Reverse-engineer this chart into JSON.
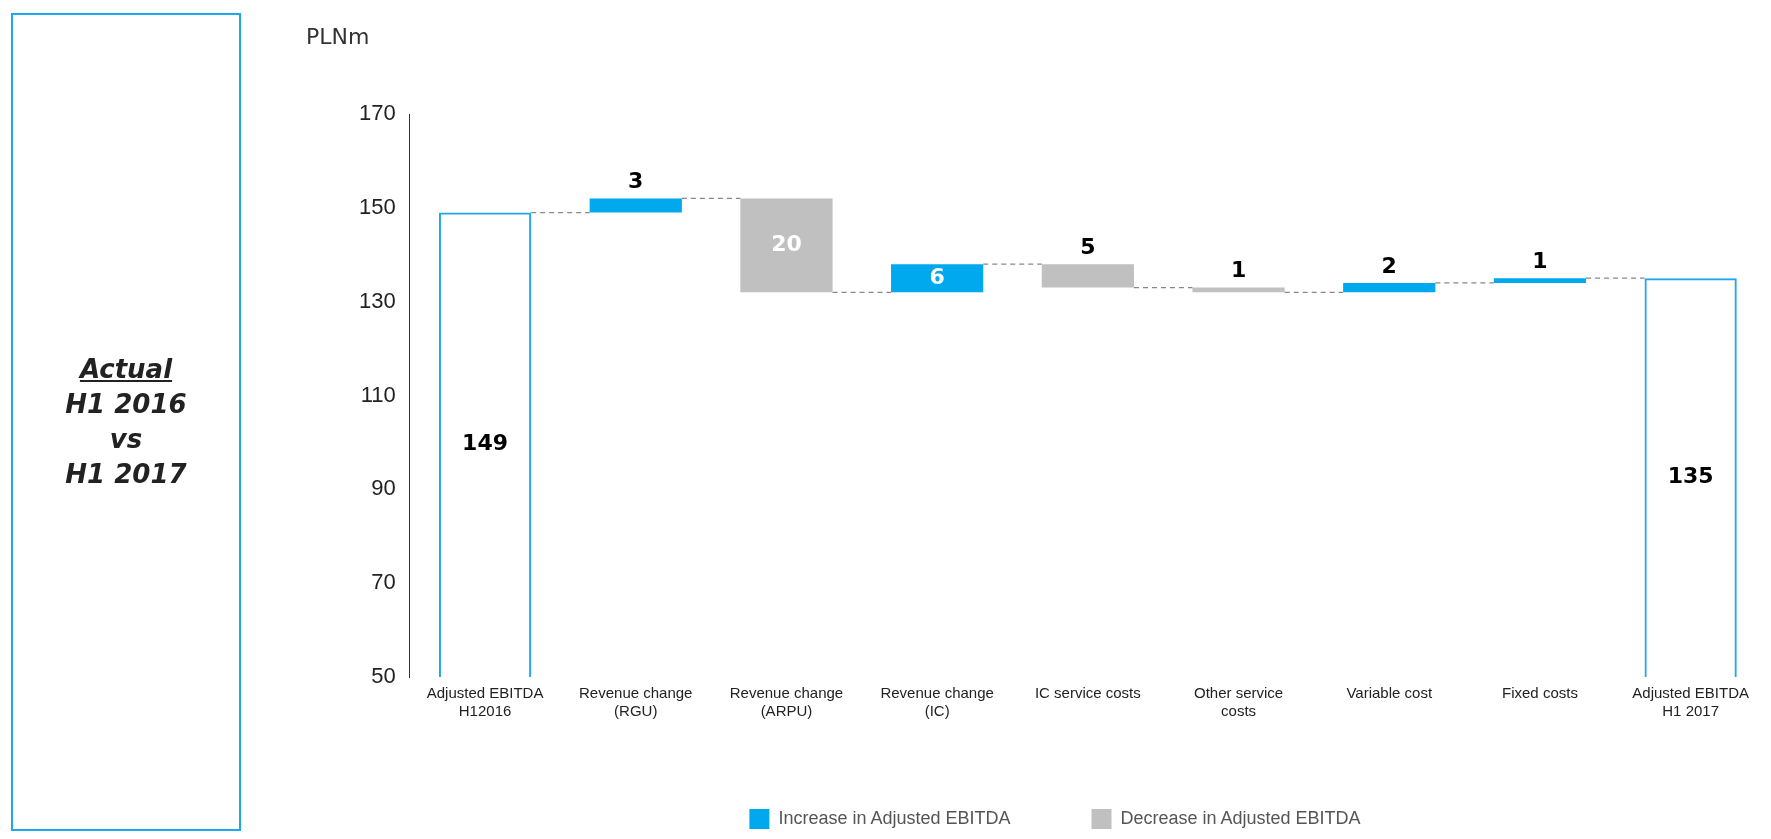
{
  "chart_data": {
    "type": "bar",
    "ylabel": "PLNm",
    "categories": [
      "Adjusted EBITDA H12016",
      "Revenue change (RGU)",
      "Revenue change (ARPU)",
      "Revenue change (IC)",
      "IC service costs",
      "Other service costs",
      "Variable cost",
      "Fixed costs",
      "Adjusted EBITDA H1 2017"
    ],
    "series": [
      {
        "color": "#1ea7e9",
        "values": [
          149,
          null,
          null,
          null,
          null,
          null,
          null,
          null,
          135
        ],
        "value_labels": [
          "149",
          null,
          null,
          null,
          null,
          null,
          null,
          null,
          "135"
        ]
      },
      {
        "name": "Increase in Adjusted EBITDA",
        "color": "#00a9ee",
        "values": [
          null,
          3,
          null,
          6,
          null,
          null,
          2,
          1,
          null
        ],
        "base": [
          null,
          149,
          null,
          132,
          null,
          null,
          132,
          134,
          null
        ],
        "value_labels": [
          null,
          "3",
          null,
          "6",
          null,
          null,
          "2",
          "1",
          null
        ]
      },
      {
        "name": "Decrease in Adjusted EBITDA",
        "color": "#c0c0c0",
        "values": [
          null,
          null,
          -20,
          null,
          -5,
          -1,
          null,
          null,
          null
        ],
        "base": [
          null,
          null,
          152,
          null,
          138,
          133,
          null,
          null,
          null
        ],
        "value_labels": [
          null,
          null,
          "20",
          null,
          "5",
          "1",
          null,
          null,
          null
        ]
      }
    ],
    "ylim": [
      50,
      170
    ],
    "yticks": [
      50,
      70,
      90,
      110,
      130,
      150,
      170
    ],
    "grid": false,
    "legend": "bottom",
    "annotations": [
      "Actual",
      "H1 2016",
      "vs",
      "H1 2017"
    ]
  }
}
